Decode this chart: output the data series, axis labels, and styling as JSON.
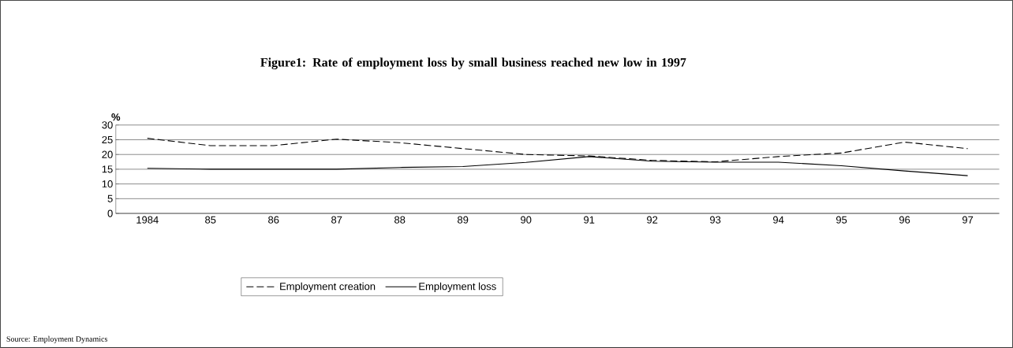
{
  "chart_data": {
    "type": "line",
    "title": "Figure1: Rate of employment loss by small business reached new low in 1997",
    "ylabel": "%",
    "categories": [
      "1984",
      "85",
      "86",
      "87",
      "88",
      "89",
      "90",
      "91",
      "92",
      "93",
      "94",
      "95",
      "96",
      "97"
    ],
    "series": [
      {
        "name": "Employment creation",
        "color": "#000000",
        "line_style": "dashed",
        "values": [
          25.5,
          23,
          23,
          25.2,
          24,
          22,
          20,
          19.5,
          18,
          17.5,
          19.3,
          20.5,
          24.2,
          22
        ]
      },
      {
        "name": "Employment loss",
        "color": "#000000",
        "line_style": "solid",
        "values": [
          15.3,
          15,
          15,
          15,
          15.6,
          15.9,
          17.3,
          19.3,
          17.7,
          17.4,
          17.4,
          16.2,
          14.4,
          12.8
        ]
      }
    ],
    "ylim": [
      0,
      30
    ],
    "yticks": [
      0,
      5,
      10,
      15,
      20,
      25,
      30
    ],
    "grid": "y",
    "legend": "bottom",
    "marker": "none",
    "annotations": [
      "Source: Employment Dynamics"
    ]
  }
}
